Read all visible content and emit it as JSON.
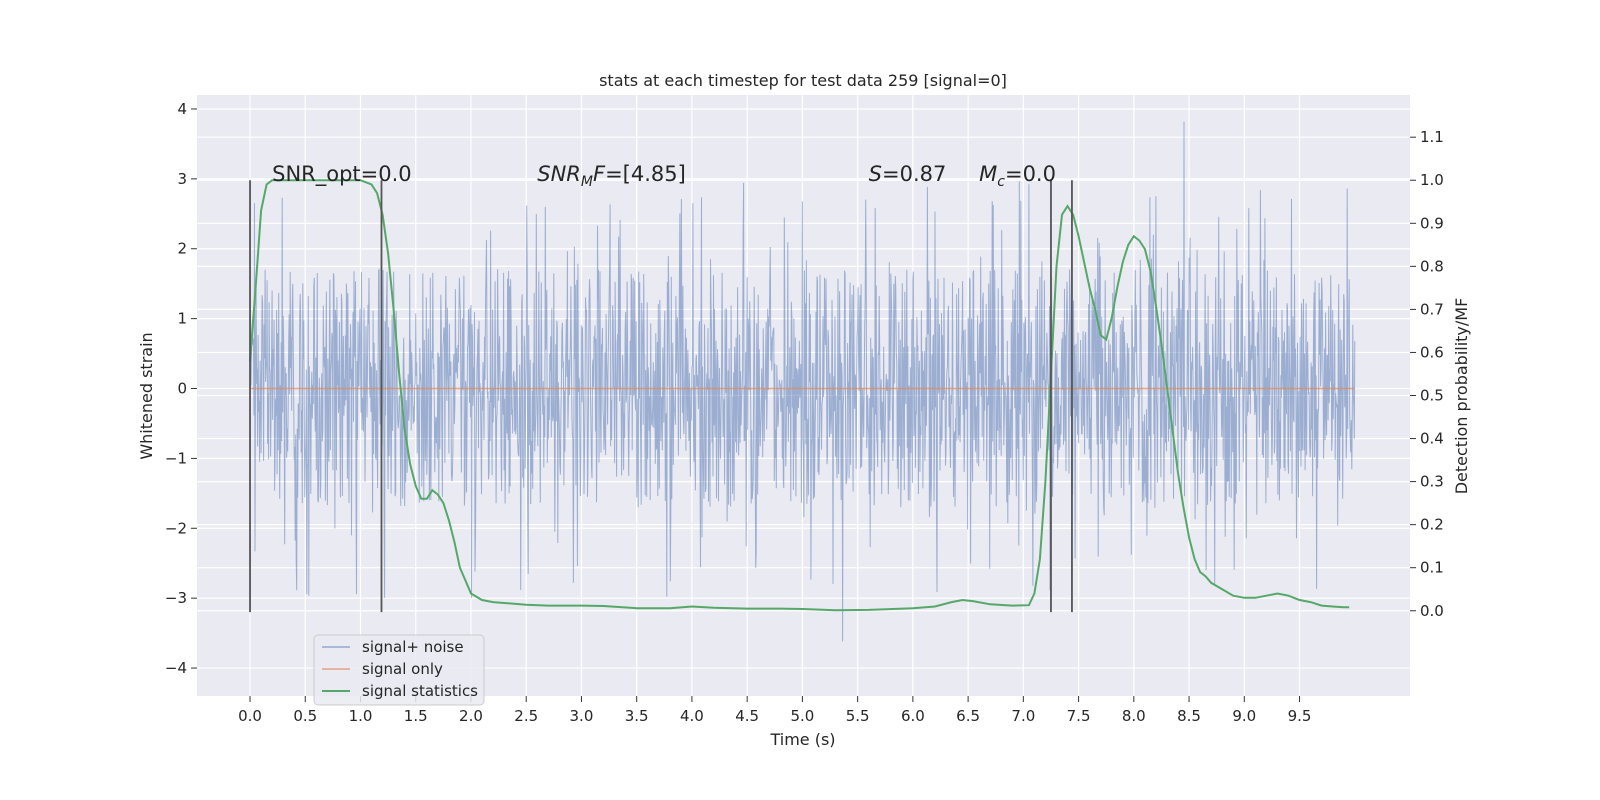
{
  "chart_data": {
    "type": "line",
    "title": "stats at each timestep for test data 259 [signal=0]",
    "xlabel": "Time (s)",
    "ylabel_left": "Whitened strain",
    "ylabel_right": "Detection probability/MF",
    "xlim": [
      -0.48,
      10.5
    ],
    "ylim_left": [
      -4.4,
      4.2
    ],
    "ylim_right": [
      -0.198,
      1.198
    ],
    "x_ticks": [
      0.0,
      0.5,
      1.0,
      1.5,
      2.0,
      2.5,
      3.0,
      3.5,
      4.0,
      4.5,
      5.0,
      5.5,
      6.0,
      6.5,
      7.0,
      7.5,
      8.0,
      8.5,
      9.0,
      9.5
    ],
    "x_tick_labels": [
      "0.0",
      "0.5",
      "1.0",
      "1.5",
      "2.0",
      "2.5",
      "3.0",
      "3.5",
      "4.0",
      "4.5",
      "5.0",
      "5.5",
      "6.0",
      "6.5",
      "7.0",
      "7.5",
      "8.0",
      "8.5",
      "9.0",
      "9.5"
    ],
    "y_left_ticks": [
      4,
      3,
      2,
      1,
      0,
      -1,
      -2,
      -3,
      -4
    ],
    "y_left_tick_labels": [
      "4",
      "3",
      "2",
      "1",
      "0",
      "−1",
      "−2",
      "−3",
      "−4"
    ],
    "y_right_ticks": [
      0.0,
      0.1,
      0.2,
      0.3,
      0.4,
      0.5,
      0.6,
      0.7,
      0.8,
      0.9,
      1.0,
      1.1
    ],
    "y_right_tick_labels": [
      "0.0",
      "0.1",
      "0.2",
      "0.3",
      "0.4",
      "0.5",
      "0.6",
      "0.7",
      "0.8",
      "0.9",
      "1.0",
      "1.1"
    ],
    "grid": true,
    "legend_position": "lower-left",
    "series": [
      {
        "name": "signal+ noise",
        "axis": "left",
        "color": "#4c72b0",
        "kind": "noise",
        "x_range": [
          0.0,
          10.0
        ],
        "typical_abs_max": 1.7,
        "max": 3.82,
        "min": -3.62
      },
      {
        "name": "signal only",
        "axis": "left",
        "color": "#dd8452",
        "x": [
          0.0,
          10.0
        ],
        "y": [
          0.0,
          0.0
        ]
      },
      {
        "name": "signal statistics",
        "axis": "right",
        "color": "#55a868",
        "x": [
          0.0,
          0.05,
          0.1,
          0.15,
          0.2,
          0.3,
          0.4,
          0.5,
          0.6,
          0.7,
          0.8,
          0.9,
          1.0,
          1.1,
          1.15,
          1.2,
          1.25,
          1.3,
          1.35,
          1.4,
          1.45,
          1.5,
          1.55,
          1.6,
          1.65,
          1.7,
          1.75,
          1.8,
          1.85,
          1.9,
          1.95,
          2.0,
          2.1,
          2.2,
          2.3,
          2.5,
          2.7,
          3.0,
          3.2,
          3.5,
          3.8,
          4.0,
          4.2,
          4.5,
          4.8,
          5.0,
          5.3,
          5.6,
          6.0,
          6.2,
          6.35,
          6.45,
          6.55,
          6.7,
          6.9,
          7.05,
          7.1,
          7.15,
          7.2,
          7.25,
          7.3,
          7.35,
          7.4,
          7.45,
          7.5,
          7.55,
          7.6,
          7.65,
          7.7,
          7.75,
          7.8,
          7.85,
          7.9,
          7.95,
          8.0,
          8.05,
          8.1,
          8.15,
          8.2,
          8.25,
          8.3,
          8.35,
          8.4,
          8.45,
          8.5,
          8.55,
          8.6,
          8.65,
          8.7,
          8.8,
          8.9,
          9.0,
          9.1,
          9.2,
          9.3,
          9.4,
          9.5,
          9.6,
          9.7,
          9.8,
          9.9,
          9.95
        ],
        "y": [
          0.58,
          0.75,
          0.93,
          0.99,
          1.0,
          1.0,
          1.0,
          1.0,
          1.0,
          1.0,
          1.0,
          1.0,
          1.0,
          0.99,
          0.97,
          0.92,
          0.83,
          0.7,
          0.55,
          0.42,
          0.34,
          0.29,
          0.26,
          0.26,
          0.28,
          0.27,
          0.25,
          0.21,
          0.16,
          0.1,
          0.07,
          0.04,
          0.025,
          0.02,
          0.018,
          0.014,
          0.012,
          0.012,
          0.011,
          0.006,
          0.006,
          0.01,
          0.007,
          0.005,
          0.005,
          0.004,
          0.001,
          0.002,
          0.006,
          0.01,
          0.02,
          0.025,
          0.022,
          0.015,
          0.012,
          0.013,
          0.04,
          0.12,
          0.3,
          0.55,
          0.8,
          0.92,
          0.94,
          0.92,
          0.87,
          0.81,
          0.75,
          0.7,
          0.64,
          0.63,
          0.68,
          0.75,
          0.81,
          0.85,
          0.87,
          0.86,
          0.84,
          0.79,
          0.71,
          0.62,
          0.52,
          0.42,
          0.32,
          0.24,
          0.17,
          0.12,
          0.09,
          0.08,
          0.065,
          0.05,
          0.035,
          0.03,
          0.03,
          0.035,
          0.04,
          0.035,
          0.025,
          0.02,
          0.012,
          0.01,
          0.008,
          0.008
        ]
      }
    ],
    "vertical_lines": [
      0.0,
      1.19,
      7.25,
      7.44
    ],
    "vertical_lines_ylim": [
      -3.2,
      2.98
    ],
    "annotations": [
      {
        "x": 0.2,
        "text": "SNR_opt=0.0"
      },
      {
        "x": 2.6,
        "text": "SNR_MF=[4.85]"
      },
      {
        "x": 5.6,
        "text": "S=0.87"
      },
      {
        "x": 6.6,
        "text": "M_c=0.0"
      }
    ]
  }
}
